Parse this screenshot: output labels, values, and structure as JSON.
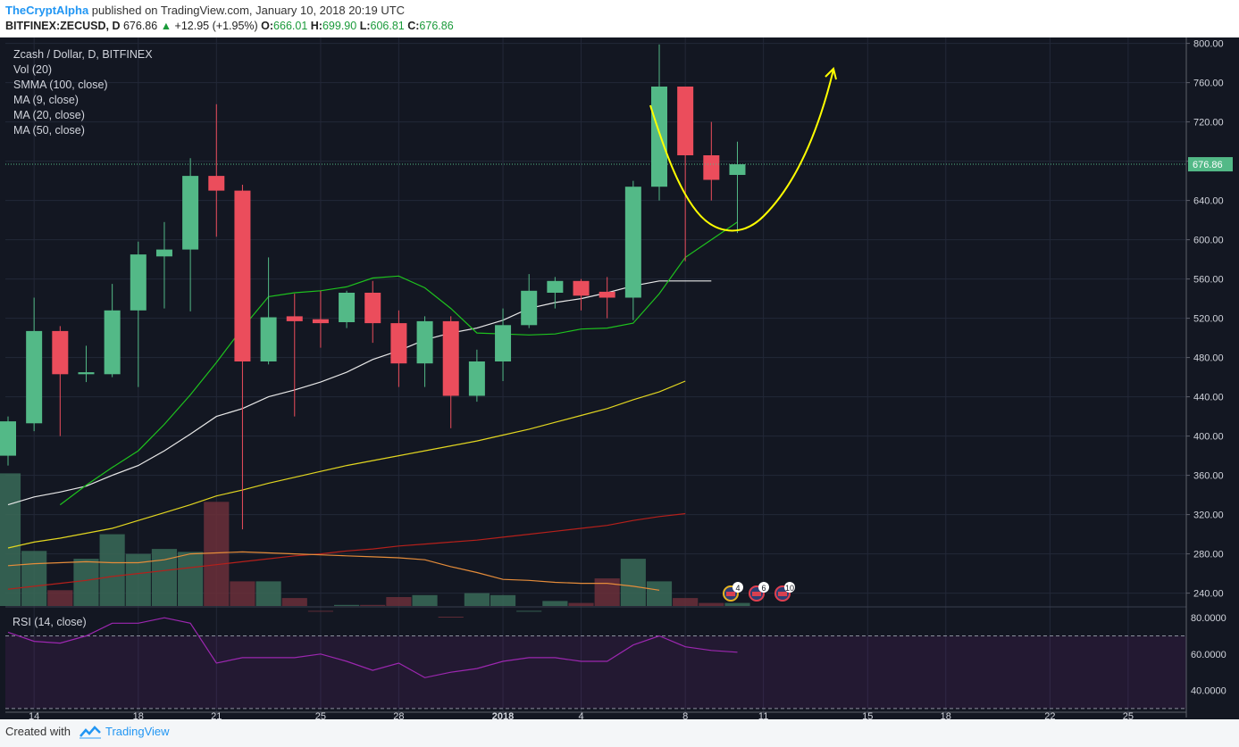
{
  "header": {
    "author": "TheCryptAlpha",
    "published": "published on TradingView.com, January 10, 2018 20:19 UTC",
    "symbol": "BITFINEX:ZECUSD, D",
    "last": "676.86",
    "change": "+12.95 (+1.95%)",
    "o_label": "O:",
    "o": "666.01",
    "h_label": "H:",
    "h": "699.90",
    "l_label": "L:",
    "l": "606.81",
    "c_label": "C:",
    "c": "676.86"
  },
  "legend": {
    "title": "Zcash / Dollar, D, BITFINEX",
    "vol": "Vol (20)",
    "smma": "SMMA (100, close)",
    "ma9": "MA (9, close)",
    "ma20": "MA (20, close)",
    "ma50": "MA (50, close)"
  },
  "rsi_label": "RSI (14, close)",
  "footer": {
    "created_with": "Created with",
    "brand": "TradingView"
  },
  "colors": {
    "background": "#131722",
    "up": "#53b987",
    "down": "#eb4d5c",
    "ma9": "#1ec31e",
    "ma20": "#e8e8e8",
    "ma50": "#e2d620",
    "smma": "#b5201b",
    "vol_ma": "#e58c3a",
    "rsi": "#9c27b0",
    "annotation": "#ffff00"
  },
  "chart_data": {
    "type": "candlestick",
    "price_axis": {
      "ticks": [
        "800.00",
        "760.00",
        "720.00",
        "680.00",
        "640.00",
        "600.00",
        "560.00",
        "520.00",
        "480.00",
        "440.00",
        "400.00",
        "360.00",
        "320.00",
        "280.00",
        "240.00"
      ],
      "range": [
        226,
        806
      ],
      "last_price_label": "676.86",
      "last_price": 676.86
    },
    "x_axis": {
      "ticks": [
        {
          "label": "14",
          "date": "2017-12-14"
        },
        {
          "label": "18",
          "date": "2017-12-18"
        },
        {
          "label": "21",
          "date": "2017-12-21"
        },
        {
          "label": "25",
          "date": "2017-12-25"
        },
        {
          "label": "28",
          "date": "2017-12-28"
        },
        {
          "label": "2018",
          "date": "2018-01-01"
        },
        {
          "label": "4",
          "date": "2018-01-04"
        },
        {
          "label": "8",
          "date": "2018-01-08"
        },
        {
          "label": "11",
          "date": "2018-01-11"
        },
        {
          "label": "15",
          "date": "2018-01-15"
        },
        {
          "label": "18",
          "date": "2018-01-18"
        },
        {
          "label": "22",
          "date": "2018-01-22"
        },
        {
          "label": "25",
          "date": "2018-01-25"
        }
      ]
    },
    "candles": [
      {
        "d": "2017-12-13",
        "o": 380,
        "h": 420,
        "l": 370,
        "c": 415
      },
      {
        "d": "2017-12-14",
        "o": 413,
        "h": 541,
        "l": 405,
        "c": 507
      },
      {
        "d": "2017-12-15",
        "o": 507,
        "h": 512,
        "l": 400,
        "c": 463
      },
      {
        "d": "2017-12-16",
        "o": 463,
        "h": 492,
        "l": 455,
        "c": 465
      },
      {
        "d": "2017-12-17",
        "o": 463,
        "h": 555,
        "l": 460,
        "c": 528
      },
      {
        "d": "2017-12-18",
        "o": 528,
        "h": 598,
        "l": 450,
        "c": 585
      },
      {
        "d": "2017-12-19",
        "o": 583,
        "h": 618,
        "l": 530,
        "c": 590
      },
      {
        "d": "2017-12-20",
        "o": 590,
        "h": 683,
        "l": 527,
        "c": 665
      },
      {
        "d": "2017-12-21",
        "o": 665,
        "h": 738,
        "l": 603,
        "c": 650
      },
      {
        "d": "2017-12-22",
        "o": 650,
        "h": 656,
        "l": 305,
        "c": 476
      },
      {
        "d": "2017-12-23",
        "o": 476,
        "h": 582,
        "l": 473,
        "c": 521
      },
      {
        "d": "2017-12-24",
        "o": 522,
        "h": 545,
        "l": 420,
        "c": 517
      },
      {
        "d": "2017-12-25",
        "o": 519,
        "h": 548,
        "l": 490,
        "c": 515
      },
      {
        "d": "2017-12-26",
        "o": 516,
        "h": 548,
        "l": 510,
        "c": 546
      },
      {
        "d": "2017-12-27",
        "o": 546,
        "h": 558,
        "l": 495,
        "c": 515
      },
      {
        "d": "2017-12-28",
        "o": 515,
        "h": 528,
        "l": 450,
        "c": 474
      },
      {
        "d": "2017-12-29",
        "o": 474,
        "h": 522,
        "l": 450,
        "c": 517
      },
      {
        "d": "2017-12-30",
        "o": 517,
        "h": 522,
        "l": 408,
        "c": 441
      },
      {
        "d": "2017-12-31",
        "o": 441,
        "h": 488,
        "l": 435,
        "c": 476
      },
      {
        "d": "2018-01-01",
        "o": 476,
        "h": 530,
        "l": 456,
        "c": 513
      },
      {
        "d": "2018-01-02",
        "o": 513,
        "h": 565,
        "l": 510,
        "c": 548
      },
      {
        "d": "2018-01-03",
        "o": 546,
        "h": 562,
        "l": 530,
        "c": 558
      },
      {
        "d": "2018-01-04",
        "o": 558,
        "h": 560,
        "l": 528,
        "c": 543
      },
      {
        "d": "2018-01-05",
        "o": 547,
        "h": 562,
        "l": 520,
        "c": 541
      },
      {
        "d": "2018-01-06",
        "o": 541,
        "h": 660,
        "l": 518,
        "c": 654
      },
      {
        "d": "2018-01-07",
        "o": 654,
        "h": 799,
        "l": 640,
        "c": 756
      },
      {
        "d": "2018-01-08",
        "o": 756,
        "h": 756,
        "l": 578,
        "c": 686
      },
      {
        "d": "2018-01-09",
        "o": 686,
        "h": 720,
        "l": 640,
        "c": 661
      },
      {
        "d": "2018-01-10",
        "o": 666.01,
        "h": 699.9,
        "l": 606.81,
        "c": 676.86
      }
    ],
    "volume": [
      362,
      283,
      243,
      275,
      300,
      280,
      285,
      282,
      333,
      252,
      252,
      235,
      222,
      228,
      228,
      236,
      238,
      216,
      240,
      238,
      222,
      232,
      230,
      255,
      275,
      252,
      235,
      230,
      230
    ],
    "ma9": [
      330,
      350,
      368,
      385,
      412,
      442,
      475,
      510,
      542,
      546,
      548,
      552,
      561,
      563,
      551,
      530,
      505,
      504,
      503,
      504,
      509,
      510,
      515,
      545,
      582,
      600,
      618
    ],
    "ma20": [
      330,
      338,
      343,
      349,
      360,
      370,
      385,
      402,
      420,
      428,
      440,
      447,
      455,
      465,
      478,
      487,
      498,
      505,
      510,
      518,
      530,
      536,
      540,
      546,
      553,
      558,
      558,
      558
    ],
    "ma50": [
      286,
      292,
      296,
      301,
      306,
      314,
      322,
      330,
      339,
      345,
      352,
      358,
      364,
      370,
      375,
      380,
      385,
      390,
      395,
      401,
      407,
      414,
      421,
      428,
      437,
      445,
      456
    ],
    "smma": [
      244,
      247,
      250,
      253,
      257,
      260,
      263,
      266,
      269,
      272,
      275,
      278,
      280,
      283,
      285,
      288,
      290,
      292,
      294,
      297,
      300,
      303,
      306,
      309,
      314,
      318,
      321
    ],
    "vol_ma": [
      268,
      270,
      271,
      272,
      271,
      271,
      274,
      280,
      281,
      282,
      281,
      280,
      279,
      278,
      277,
      276,
      274,
      267,
      261,
      254,
      253,
      251,
      250,
      250,
      247,
      243
    ],
    "rsi": {
      "range": [
        25,
        85
      ],
      "ticks": [
        "80.0000",
        "60.0000",
        "40.0000"
      ],
      "bands": [
        70,
        30
      ],
      "values": [
        72,
        67,
        66,
        70,
        77,
        77,
        80,
        77,
        55,
        58,
        58,
        58,
        60,
        56,
        51,
        55,
        47,
        50,
        52,
        56,
        58,
        58,
        56,
        56,
        65,
        70,
        64,
        62,
        61
      ]
    }
  }
}
